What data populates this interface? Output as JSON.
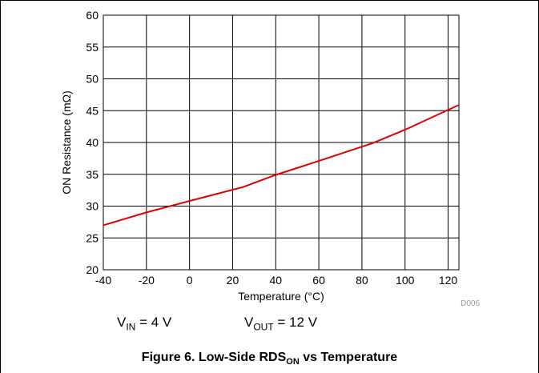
{
  "chart_data": {
    "type": "line",
    "xlabel": "Temperature (°C)",
    "ylabel": "ON Resistance (mΩ)",
    "xlim": [
      -40,
      125
    ],
    "ylim": [
      20,
      60
    ],
    "xticks": [
      -40,
      -20,
      0,
      20,
      40,
      60,
      80,
      100,
      120
    ],
    "yticks": [
      20,
      25,
      30,
      35,
      40,
      45,
      50,
      55,
      60
    ],
    "grid": true,
    "tag": "D006",
    "series": [
      {
        "color": "#e00000",
        "x": [
          -40,
          -20,
          0,
          25,
          40,
          60,
          85,
          100,
          125
        ],
        "y": [
          27.0,
          29.0,
          30.8,
          33.0,
          34.9,
          37.1,
          39.9,
          42.0,
          45.9
        ]
      }
    ]
  },
  "conditions": {
    "vin_main": "V",
    "vin_sub": "IN",
    "vin_value": " = 4 V",
    "vout_main": "V",
    "vout_sub": "OUT",
    "vout_value": " = 12 V"
  },
  "caption": {
    "main": "Figure 6. Low-Side RDS",
    "sub": "ON",
    "tail": " vs Temperature"
  }
}
